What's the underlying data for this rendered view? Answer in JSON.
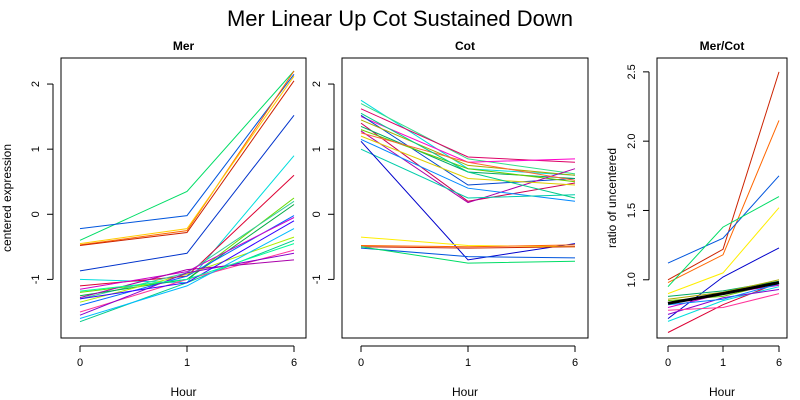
{
  "title": "Mer Linear Up Cot Sustained Down",
  "chart_data": [
    {
      "type": "line",
      "title": "Mer",
      "xlabel": "Hour",
      "ylabel": "centered expression",
      "x": [
        "0",
        "1",
        "6"
      ],
      "ylim": [
        -1.9,
        2.4
      ],
      "yticks": [
        -1,
        0,
        1,
        2
      ],
      "grid": false,
      "series": [
        {
          "color": "#00DD66",
          "values": [
            -0.4,
            0.35,
            2.2
          ]
        },
        {
          "color": "#0055DD",
          "values": [
            -0.22,
            -0.02,
            2.15
          ]
        },
        {
          "color": "#FF6600",
          "values": [
            -0.47,
            -0.25,
            2.2
          ]
        },
        {
          "color": "#FFCC00",
          "values": [
            -0.45,
            -0.22,
            2.12
          ]
        },
        {
          "color": "#CC2200",
          "values": [
            -0.48,
            -0.28,
            2.05
          ]
        },
        {
          "color": "#0033CC",
          "values": [
            -0.87,
            -0.6,
            1.52
          ]
        },
        {
          "color": "#00DDDD",
          "values": [
            -1.0,
            -1.05,
            0.9
          ]
        },
        {
          "color": "#DD0033",
          "values": [
            -1.1,
            -0.95,
            0.6
          ]
        },
        {
          "color": "#66DD00",
          "values": [
            -1.2,
            -1.0,
            0.25
          ]
        },
        {
          "color": "#33CC99",
          "values": [
            -1.3,
            -0.9,
            0.2
          ]
        },
        {
          "color": "#00AA44",
          "values": [
            -1.25,
            -1.0,
            0.15
          ]
        },
        {
          "color": "#0066FF",
          "values": [
            -1.4,
            -0.95,
            -0.02
          ]
        },
        {
          "color": "#CC00CC",
          "values": [
            -1.15,
            -0.88,
            -0.05
          ]
        },
        {
          "color": "#AAEE00",
          "values": [
            -1.35,
            -0.92,
            -0.35
          ]
        },
        {
          "color": "#00CC88",
          "values": [
            -1.65,
            -1.05,
            -0.4
          ]
        },
        {
          "color": "#FF3399",
          "values": [
            -1.5,
            -1.0,
            -0.55
          ]
        },
        {
          "color": "#8800CC",
          "values": [
            -1.55,
            -0.9,
            -0.6
          ]
        },
        {
          "color": "#00BBFF",
          "values": [
            -1.6,
            -1.1,
            -0.22
          ]
        },
        {
          "color": "#AA00AA",
          "values": [
            -1.28,
            -0.85,
            -0.7
          ]
        },
        {
          "color": "#3300FF",
          "values": [
            -1.3,
            -1.05,
            -0.1
          ]
        },
        {
          "color": "#00FF99",
          "values": [
            -1.18,
            -1.0,
            -0.45
          ]
        }
      ]
    },
    {
      "type": "line",
      "title": "Cot",
      "xlabel": "Hour",
      "ylabel": "",
      "x": [
        "0",
        "1",
        "6"
      ],
      "ylim": [
        -1.9,
        2.4
      ],
      "yticks": [
        -1,
        0,
        1,
        2
      ],
      "grid": false,
      "series": [
        {
          "color": "#00DDDD",
          "values": [
            1.75,
            0.7,
            0.6
          ]
        },
        {
          "color": "#33DD88",
          "values": [
            1.7,
            0.85,
            0.62
          ]
        },
        {
          "color": "#DD0066",
          "values": [
            1.62,
            0.88,
            0.8
          ]
        },
        {
          "color": "#FF00CC",
          "values": [
            1.5,
            0.8,
            0.85
          ]
        },
        {
          "color": "#0044CC",
          "values": [
            1.52,
            0.45,
            0.55
          ]
        },
        {
          "color": "#AAAA00",
          "values": [
            1.45,
            0.75,
            0.6
          ]
        },
        {
          "color": "#CC0055",
          "values": [
            1.4,
            0.2,
            0.48
          ]
        },
        {
          "color": "#00AA66",
          "values": [
            1.35,
            0.65,
            0.55
          ]
        },
        {
          "color": "#66CC00",
          "values": [
            1.3,
            0.7,
            0.5
          ]
        },
        {
          "color": "#AA00AA",
          "values": [
            1.28,
            0.18,
            0.7
          ]
        },
        {
          "color": "#0088FF",
          "values": [
            1.15,
            0.4,
            0.2
          ]
        },
        {
          "color": "#DDCC00",
          "values": [
            1.2,
            0.55,
            0.45
          ]
        },
        {
          "color": "#FF6633",
          "values": [
            1.25,
            0.8,
            0.52
          ]
        },
        {
          "color": "#00CCAA",
          "values": [
            1.0,
            0.25,
            0.3
          ]
        },
        {
          "color": "#0000CC",
          "values": [
            1.12,
            -0.7,
            -0.45
          ]
        },
        {
          "color": "#00CC88",
          "values": [
            1.55,
            0.65,
            0.25
          ]
        },
        {
          "color": "#FFEE00",
          "values": [
            -0.35,
            -0.48,
            -0.5
          ]
        },
        {
          "color": "#FF6600",
          "values": [
            -0.48,
            -0.5,
            -0.47
          ]
        },
        {
          "color": "#CC2200",
          "values": [
            -0.5,
            -0.52,
            -0.5
          ]
        },
        {
          "color": "#0055DD",
          "values": [
            -0.52,
            -0.65,
            -0.67
          ]
        },
        {
          "color": "#00DD66",
          "values": [
            -0.5,
            -0.75,
            -0.72
          ]
        }
      ]
    },
    {
      "type": "line",
      "title": "Mer/Cot",
      "xlabel": "Hour",
      "ylabel": "ratio of uncentered",
      "x": [
        "0",
        "1",
        "6"
      ],
      "ylim": [
        0.58,
        2.6
      ],
      "yticks": [
        1.0,
        1.5,
        2.0,
        2.5
      ],
      "ytick_labels": [
        "1.0",
        "1.5",
        "2.0",
        "2.5"
      ],
      "grid": false,
      "series": [
        {
          "color": "#CC2200",
          "values": [
            1.0,
            1.22,
            2.5
          ]
        },
        {
          "color": "#FF6600",
          "values": [
            0.98,
            1.18,
            2.15
          ]
        },
        {
          "color": "#0055DD",
          "values": [
            1.12,
            1.3,
            1.75
          ]
        },
        {
          "color": "#00DD66",
          "values": [
            0.95,
            1.38,
            1.6
          ]
        },
        {
          "color": "#FFEE00",
          "values": [
            0.9,
            1.05,
            1.52
          ]
        },
        {
          "color": "#0000CC",
          "values": [
            0.72,
            1.02,
            1.23
          ]
        },
        {
          "color": "#DD0033",
          "values": [
            0.62,
            0.82,
            0.98
          ]
        },
        {
          "color": "#00DDDD",
          "values": [
            0.7,
            0.85,
            0.95
          ]
        },
        {
          "color": "#66CC00",
          "values": [
            0.85,
            0.88,
            0.98
          ]
        },
        {
          "color": "#CC00CC",
          "values": [
            0.8,
            0.9,
            0.96
          ]
        },
        {
          "color": "#00AA66",
          "values": [
            0.88,
            0.92,
            0.99
          ]
        },
        {
          "color": "#8800CC",
          "values": [
            0.75,
            0.87,
            0.93
          ]
        },
        {
          "color": "#FF3399",
          "values": [
            0.78,
            0.8,
            0.9
          ]
        },
        {
          "color": "#0088FF",
          "values": [
            0.82,
            0.86,
            0.97
          ]
        },
        {
          "color": "#AAAA00",
          "values": [
            0.86,
            0.91,
            1.0
          ]
        },
        {
          "color": "#000000",
          "values": [
            0.83,
            0.9,
            0.98
          ],
          "bold": true
        }
      ]
    }
  ]
}
